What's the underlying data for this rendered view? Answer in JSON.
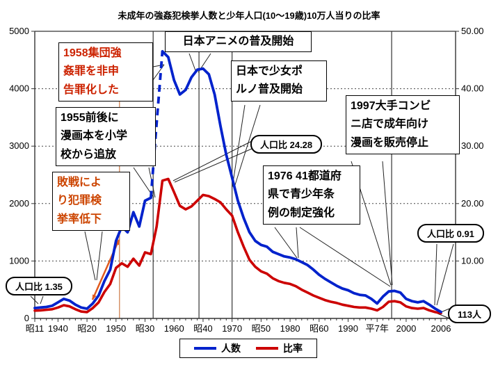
{
  "title": "未成年の強姦犯検挙人数と少年人口(10〜19歳)10万人当りの比率",
  "chart_data": {
    "type": "line",
    "x_start_year": 1936,
    "x_end_year": 2006,
    "left_axis": {
      "min": 0,
      "max": 5000,
      "tick_labels": [
        "0",
        "1000",
        "2000",
        "3000",
        "4000",
        "5000"
      ]
    },
    "right_axis": {
      "min": 0,
      "max": 50,
      "tick_labels": [
        "0.00",
        "10.00",
        "20.00",
        "30.00",
        "40.00",
        "50.00"
      ]
    },
    "x_ticks": [
      {
        "label": "昭11",
        "year": 1936
      },
      {
        "label": "1940",
        "year": 1940
      },
      {
        "label": "昭20",
        "year": 1945
      },
      {
        "label": "1950",
        "year": 1950
      },
      {
        "label": "昭30",
        "year": 1955
      },
      {
        "label": "1960",
        "year": 1960
      },
      {
        "label": "昭40",
        "year": 1965
      },
      {
        "label": "1970",
        "year": 1970
      },
      {
        "label": "昭50",
        "year": 1975
      },
      {
        "label": "1980",
        "year": 1980
      },
      {
        "label": "昭60",
        "year": 1985
      },
      {
        "label": "1990",
        "year": 1990
      },
      {
        "label": "平7年",
        "year": 1995
      },
      {
        "label": "2000",
        "year": 2000
      },
      {
        "label": "2006",
        "year": 2006
      }
    ],
    "grid": "horizontal dashed lines every 1000 (left axis) / 10.00 (right axis)",
    "legend_position": "bottom-center",
    "series": [
      {
        "name": "人数",
        "axis": "left",
        "color": "#0022cc",
        "dashed_segment_years": [
          1956,
          1958
        ],
        "values": [
          180,
          190,
          200,
          220,
          280,
          340,
          310,
          240,
          190,
          170,
          260,
          400,
          650,
          850,
          1350,
          1600,
          1500,
          1850,
          1600,
          2050,
          2100,
          3400,
          4650,
          4550,
          4150,
          3900,
          3980,
          4200,
          4330,
          4350,
          4250,
          3900,
          3350,
          2850,
          2450,
          2050,
          1750,
          1500,
          1350,
          1280,
          1250,
          1160,
          1120,
          1080,
          1060,
          1030,
          980,
          930,
          850,
          760,
          690,
          630,
          570,
          520,
          490,
          440,
          410,
          400,
          340,
          260,
          380,
          470,
          480,
          450,
          340,
          300,
          280,
          300,
          240,
          170,
          113
        ]
      },
      {
        "name": "比率",
        "axis": "right",
        "color": "#cc0000",
        "values": [
          1.35,
          1.4,
          1.5,
          1.6,
          1.9,
          2.3,
          2.1,
          1.6,
          1.2,
          1.1,
          1.8,
          2.8,
          4.6,
          6.0,
          8.8,
          9.6,
          9.0,
          10.4,
          9.2,
          11.5,
          11.2,
          16.0,
          24.0,
          24.28,
          22.0,
          19.6,
          19.0,
          19.5,
          20.5,
          21.5,
          21.3,
          20.8,
          20.2,
          19.0,
          17.9,
          15.0,
          12.5,
          10.2,
          9.0,
          8.2,
          7.8,
          7.0,
          6.5,
          6.2,
          6.0,
          5.6,
          5.0,
          4.5,
          4.0,
          3.6,
          3.2,
          2.9,
          2.7,
          2.4,
          2.2,
          2.0,
          1.9,
          1.9,
          1.7,
          1.4,
          2.0,
          2.9,
          3.0,
          2.8,
          2.1,
          1.8,
          1.7,
          1.8,
          1.4,
          1.1,
          0.91
        ]
      }
    ],
    "event_lines": [
      {
        "year": 1950.6,
        "color": "#cc7744"
      },
      {
        "year": 1956.4,
        "color": "#333333"
      },
      {
        "year": 1964.3,
        "color": "#333333"
      },
      {
        "year": 1970.0,
        "color": "#333333"
      },
      {
        "year": 1997.5,
        "color": "#333333"
      }
    ]
  },
  "annotations": {
    "box_1958": {
      "text": "1958集団強\n姦罪を非申\n告罪化した",
      "color": "#cc2200"
    },
    "box_1955": {
      "text": "1955前後に\n漫画本を小学\n校から追放",
      "color": "#000000"
    },
    "box_haisen": {
      "text": "敗戦によ\nり犯罪検\n挙率低下",
      "color": "#cc4400"
    },
    "box_anime": {
      "text": "日本アニメの普及開始",
      "color": "#000000"
    },
    "box_porn": {
      "text": "日本で少女ポ\nルノ普及開始",
      "color": "#000000"
    },
    "box_1976": {
      "text": "1976 41都道府\n県で青少年条\n例の制定強化",
      "color": "#000000"
    },
    "box_1997": {
      "text": "1997大手コンビ\nニ店で成年向け\n漫画を販売停止",
      "color": "#000000"
    },
    "callout_2428": {
      "text": "人口比 24.28"
    },
    "callout_135": {
      "text": "人口比 1.35"
    },
    "callout_091": {
      "text": "人口比 0.91"
    },
    "callout_113": {
      "text": "113人"
    }
  },
  "legend": {
    "items": [
      {
        "label": "人数",
        "color": "#0022cc"
      },
      {
        "label": "比率",
        "color": "#cc0000"
      }
    ]
  },
  "arrow_color": "#e05a1e"
}
